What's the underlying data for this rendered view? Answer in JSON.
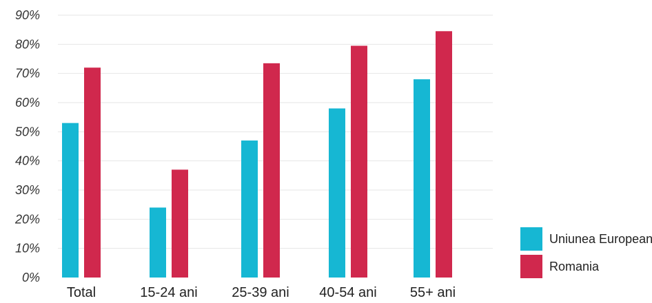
{
  "chart_data": {
    "type": "bar",
    "title": "",
    "xlabel": "",
    "ylabel": "",
    "categories": [
      "Total",
      "15-24 ani",
      "25-39 ani",
      "40-54 ani",
      "55+ ani"
    ],
    "ylim": [
      0,
      90
    ],
    "y_ticks": [
      0,
      10,
      20,
      30,
      40,
      50,
      60,
      70,
      80,
      90
    ],
    "y_tick_labels": [
      "0%",
      "10%",
      "20%",
      "30%",
      "40%",
      "50%",
      "60%",
      "70%",
      "80%",
      "90%"
    ],
    "grid": true,
    "legend_position": "bottom-right",
    "series": [
      {
        "name": "Uniunea Europeana",
        "color": "#16b7d3",
        "values": [
          53,
          24,
          47,
          58,
          68
        ]
      },
      {
        "name": "Romania",
        "color": "#d0284d",
        "values": [
          72,
          37,
          73.5,
          79.5,
          84.5
        ]
      }
    ]
  }
}
